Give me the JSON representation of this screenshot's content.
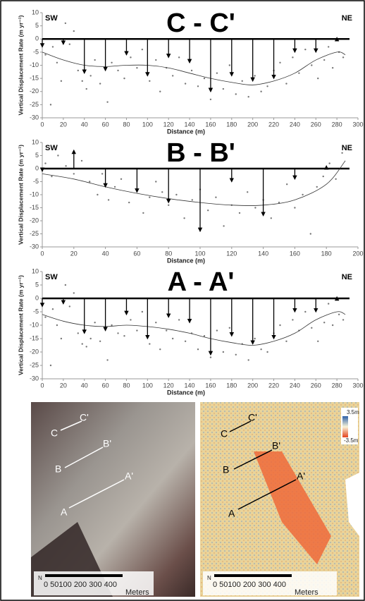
{
  "chart_data": [
    {
      "type": "profile",
      "title": "C  -  C'",
      "left_label": "SW",
      "right_label": "NE",
      "x_label": "Distance (m)",
      "y_label": "Vertical Displacement Rate (m yr⁻¹)",
      "xlim": [
        0,
        300
      ],
      "xticks": [
        0,
        20,
        40,
        60,
        80,
        100,
        120,
        140,
        160,
        180,
        200,
        220,
        240,
        260,
        280,
        300
      ],
      "ylim": [
        -30,
        10
      ],
      "yticks": [
        10,
        5,
        0,
        -5,
        -10,
        -15,
        -20,
        -25,
        -30
      ],
      "arrows": {
        "x": [
          0,
          20,
          40,
          60,
          80,
          100,
          120,
          140,
          160,
          180,
          200,
          220,
          240,
          260,
          280
        ],
        "values": [
          -3,
          -2,
          -13,
          -12,
          -6,
          -14,
          -7,
          -9,
          -20,
          -14,
          -16,
          -15,
          -5,
          -5,
          0.5
        ]
      },
      "points": {
        "x": [
          3,
          8,
          10,
          14,
          18,
          22,
          26,
          30,
          34,
          38,
          42,
          46,
          50,
          55,
          62,
          66,
          72,
          78,
          84,
          90,
          95,
          102,
          108,
          112,
          118,
          124,
          130,
          136,
          142,
          148,
          154,
          160,
          166,
          172,
          178,
          184,
          190,
          196,
          202,
          208,
          214,
          220,
          226,
          232,
          238,
          244,
          250,
          256,
          262,
          268,
          272,
          276,
          282,
          286
        ],
        "values": [
          -6,
          -25,
          -3,
          -9,
          -16,
          6,
          -2,
          3,
          -12,
          -16,
          -19,
          -14,
          -8,
          -17,
          -24,
          -9,
          -12,
          -15,
          -7,
          -11,
          -4,
          -16,
          -8,
          -20,
          -11,
          -14,
          -7,
          -17,
          -12,
          -18,
          -15,
          -23,
          -13,
          -19,
          -10,
          -21,
          -16,
          -22,
          -14,
          -20,
          -18,
          -12,
          -9,
          -17,
          -7,
          -13,
          -4,
          -10,
          -15,
          -8,
          -3,
          -11,
          -5,
          -7
        ]
      },
      "trend": {
        "x": [
          0,
          20,
          40,
          60,
          80,
          100,
          120,
          140,
          160,
          180,
          200,
          220,
          240,
          260,
          280,
          288
        ],
        "values": [
          -5,
          -8,
          -10,
          -10.5,
          -10,
          -10,
          -11,
          -13,
          -15,
          -16.5,
          -17.5,
          -16,
          -13,
          -8,
          -5,
          -6
        ]
      }
    },
    {
      "type": "profile",
      "title": "B  -  B'",
      "left_label": "SW",
      "right_label": "NE",
      "x_label": "Distance (m)",
      "y_label": "Vertical Displacement Rate (m yr⁻¹)",
      "xlim": [
        0,
        200
      ],
      "xticks": [
        0,
        20,
        40,
        60,
        80,
        100,
        120,
        140,
        160,
        180,
        200
      ],
      "ylim": [
        -30,
        10
      ],
      "yticks": [
        10,
        5,
        0,
        -5,
        -10,
        -15,
        -20,
        -25,
        -30
      ],
      "arrows": {
        "x": [
          0,
          20,
          40,
          60,
          80,
          100,
          120,
          140,
          160,
          180
        ],
        "values": [
          -1,
          7,
          -7,
          -9,
          -13,
          -24,
          -5,
          -18,
          -4,
          1
        ]
      },
      "points": {
        "x": [
          2,
          6,
          10,
          15,
          20,
          25,
          30,
          35,
          38,
          42,
          46,
          50,
          55,
          60,
          64,
          68,
          72,
          76,
          80,
          85,
          90,
          95,
          100,
          105,
          110,
          115,
          120,
          125,
          130,
          135,
          140,
          145,
          150,
          155,
          160,
          165,
          170,
          174,
          178,
          182,
          186,
          190
        ],
        "values": [
          2,
          -3,
          5,
          1,
          -2,
          3,
          -5,
          -10,
          -2,
          -12,
          -7,
          -4,
          -13,
          -8,
          -17,
          -11,
          -5,
          -9,
          -14,
          -10,
          -19,
          -12,
          -8,
          -16,
          -11,
          -22,
          -14,
          -17,
          -9,
          -15,
          -12,
          -19,
          -13,
          -6,
          -15,
          -10,
          -25,
          -7,
          -3,
          2,
          -4,
          6
        ]
      },
      "trend": {
        "x": [
          0,
          20,
          40,
          60,
          80,
          100,
          120,
          140,
          160,
          180,
          192
        ],
        "values": [
          -2,
          -4,
          -7,
          -9.5,
          -11.5,
          -13,
          -14,
          -14,
          -12,
          -6,
          3
        ]
      }
    },
    {
      "type": "profile",
      "title": "A  -  A'",
      "left_label": "SW",
      "right_label": "NE",
      "x_label": "Distance (m)",
      "y_label": "Vertical Displacement Rate (m yr⁻¹)",
      "xlim": [
        0,
        300
      ],
      "xticks": [
        0,
        20,
        40,
        60,
        80,
        100,
        120,
        140,
        160,
        180,
        200,
        220,
        240,
        260,
        280,
        300
      ],
      "ylim": [
        -30,
        10
      ],
      "yticks": [
        10,
        5,
        0,
        -5,
        -10,
        -15,
        -20,
        -25,
        -30
      ],
      "arrows": {
        "x": [
          0,
          20,
          40,
          60,
          80,
          100,
          120,
          140,
          160,
          180,
          200,
          220,
          240,
          260,
          280
        ],
        "values": [
          -3,
          -2,
          -13,
          -12,
          -6,
          -15,
          -7,
          -9,
          -21,
          -14,
          -17,
          -15,
          -5,
          -5,
          0.5
        ]
      },
      "points": {
        "x": [
          3,
          8,
          10,
          14,
          18,
          22,
          26,
          30,
          34,
          38,
          42,
          46,
          50,
          55,
          62,
          66,
          72,
          78,
          84,
          90,
          95,
          102,
          108,
          112,
          118,
          124,
          130,
          136,
          142,
          148,
          154,
          160,
          166,
          172,
          178,
          184,
          190,
          196,
          202,
          208,
          214,
          220,
          226,
          232,
          238,
          244,
          250,
          256,
          262,
          268,
          272,
          276,
          282,
          286
        ],
        "values": [
          -7,
          -25,
          -4,
          -10,
          -15,
          5,
          -3,
          2,
          -13,
          -17,
          -18,
          -15,
          -9,
          -16,
          -23,
          -10,
          -13,
          -14,
          -8,
          -12,
          -5,
          -17,
          -9,
          -19,
          -12,
          -15,
          -8,
          -16,
          -13,
          -19,
          -14,
          -22,
          -12,
          -20,
          -11,
          -21,
          -17,
          -23,
          -15,
          -19,
          -20,
          -13,
          -10,
          -16,
          -8,
          -12,
          -5,
          -11,
          -16,
          -9,
          -2,
          -10,
          -6,
          -8
        ]
      },
      "trend": {
        "x": [
          0,
          20,
          40,
          60,
          80,
          100,
          120,
          140,
          160,
          180,
          200,
          220,
          240,
          260,
          280,
          288
        ],
        "values": [
          -6,
          -8.5,
          -10,
          -10.5,
          -10,
          -10.5,
          -11.5,
          -13,
          -15,
          -16.5,
          -17.5,
          -16,
          -13,
          -8,
          -5,
          -6
        ]
      }
    }
  ],
  "maps": {
    "left": {
      "labels": [
        "C",
        "C'",
        "B",
        "B'",
        "A",
        "A'"
      ],
      "north": "N",
      "scale": "0  50100   200   300   400",
      "units": "Meters"
    },
    "right": {
      "labels": [
        "C",
        "C'",
        "B",
        "B'",
        "A",
        "A'"
      ],
      "north": "N",
      "scale": "0  50100   200   300   400",
      "units": "Meters",
      "legend_max": "3.5m",
      "legend_min": "-3.5m"
    }
  }
}
